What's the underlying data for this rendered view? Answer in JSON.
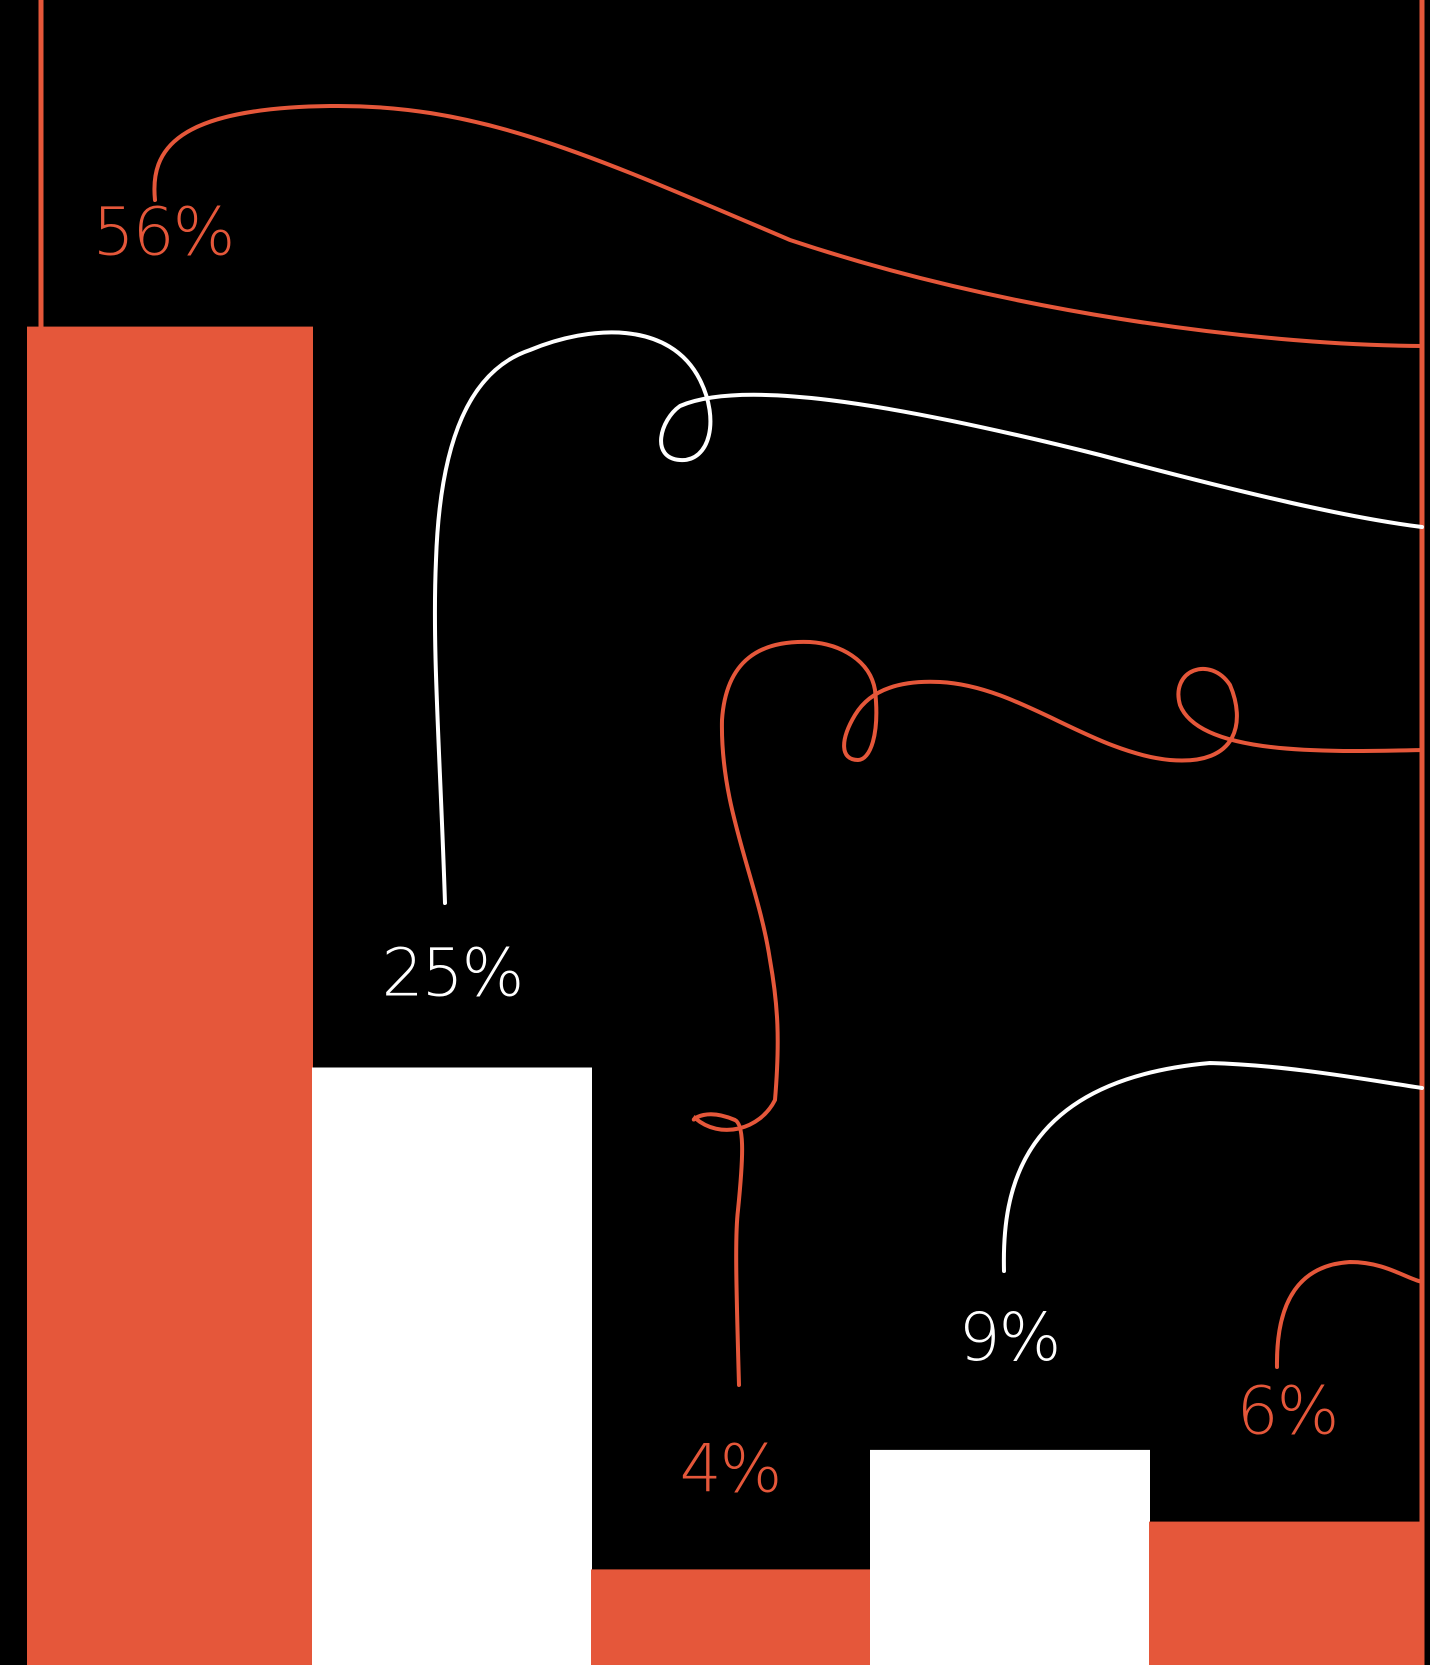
{
  "colors": {
    "background": "#000000",
    "accent": "#E5573A",
    "light": "#FFFFFF"
  },
  "chart_data": {
    "type": "bar",
    "ylim": [
      0,
      100
    ],
    "values": [
      56,
      25,
      4,
      9,
      6
    ],
    "labels": [
      "56%",
      "25%",
      "4%",
      "9%",
      "6%"
    ],
    "bar_colors": [
      "accent",
      "light",
      "accent",
      "light",
      "accent"
    ],
    "grid": false,
    "legend": false
  }
}
